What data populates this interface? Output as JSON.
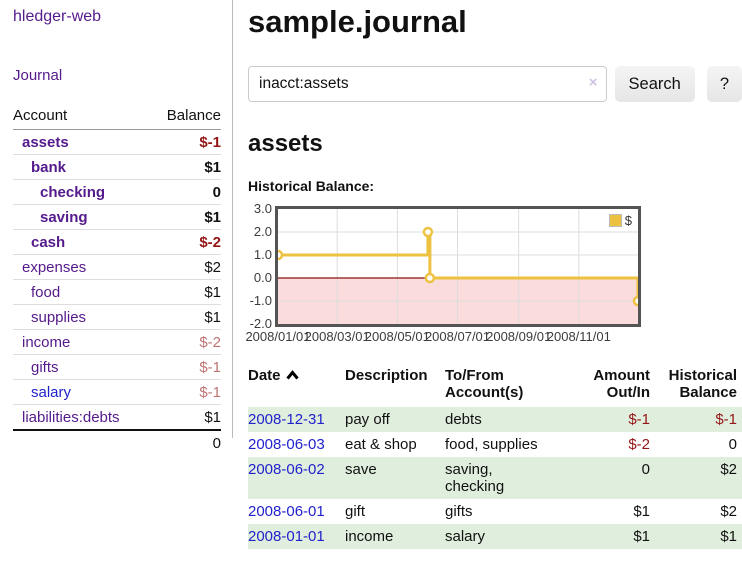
{
  "app_title": "hledger-web",
  "colors": {
    "link_purple": "#551a8b",
    "link_blue": "#2222cc",
    "negative": "#941616",
    "negative_light": "#c07575",
    "row_green": "#e0eedd",
    "chart_line": "#edc240",
    "chart_negative_region": "#fbdcdc",
    "chart_zero_line": "#8b1111",
    "chart_grid": "#dcdcdc",
    "chart_border": "#545454"
  },
  "sidebar": {
    "journal_link": "Journal",
    "accounts_table": {
      "headers": {
        "account": "Account",
        "balance": "Balance"
      },
      "rows": [
        {
          "name": "assets",
          "indent": 1,
          "bold": true,
          "balance": "$-1",
          "balance_tone": "negative"
        },
        {
          "name": "bank",
          "indent": 2,
          "bold": true,
          "balance": "$1",
          "balance_tone": "normal"
        },
        {
          "name": "checking",
          "indent": 3,
          "bold": true,
          "balance": "0",
          "balance_tone": "normal"
        },
        {
          "name": "saving",
          "indent": 3,
          "bold": true,
          "balance": "$1",
          "balance_tone": "normal"
        },
        {
          "name": "cash",
          "indent": 2,
          "bold": true,
          "balance": "$-2",
          "balance_tone": "negative"
        },
        {
          "name": "expenses",
          "indent": 1,
          "bold": false,
          "balance": "$2",
          "balance_tone": "normal"
        },
        {
          "name": "food",
          "indent": 2,
          "bold": false,
          "balance": "$1",
          "balance_tone": "normal"
        },
        {
          "name": "supplies",
          "indent": 2,
          "bold": false,
          "balance": "$1",
          "balance_tone": "normal"
        },
        {
          "name": "income",
          "indent": 1,
          "bold": false,
          "balance": "$-2",
          "balance_tone": "negative-light"
        },
        {
          "name": "gifts",
          "indent": 2,
          "bold": false,
          "balance": "$-1",
          "balance_tone": "negative-light"
        },
        {
          "name": "salary",
          "indent": 2,
          "bold": false,
          "balance": "$-1",
          "balance_tone": "negative-light",
          "link_blue": true
        },
        {
          "name": "liabilities:debts",
          "indent": 1,
          "bold": false,
          "balance": "$1",
          "balance_tone": "normal"
        }
      ],
      "total": "0"
    }
  },
  "header": {
    "title": "sample.journal"
  },
  "search": {
    "value": "inacct:assets",
    "clear_icon": "×",
    "button_label": "Search",
    "help_label": "?"
  },
  "main": {
    "account_heading": "assets",
    "chart_label": "Historical Balance:"
  },
  "chart_data": {
    "type": "line",
    "title": "Historical Balance",
    "step": true,
    "series": [
      {
        "name": "$",
        "points": [
          [
            "2008-01-01",
            1
          ],
          [
            "2008-06-01",
            2
          ],
          [
            "2008-06-03",
            0
          ],
          [
            "2008-12-31",
            -1
          ]
        ]
      }
    ],
    "xlim": [
      "2008-01-01",
      "2008-12-31"
    ],
    "ylim": [
      -2,
      3
    ],
    "x_ticks": [
      "2008/01/01",
      "2008/03/01",
      "2008/05/01",
      "2008/07/01",
      "2008/09/01",
      "2008/11/01"
    ],
    "y_ticks": [
      3.0,
      2.0,
      1.0,
      0.0,
      -1.0,
      -2.0
    ],
    "grid": true,
    "legend_position": "top-right",
    "negative_region_shaded": true
  },
  "register_table": {
    "headers": {
      "date": "Date",
      "description": "Description",
      "account": "To/From Account(s)",
      "amount": "Amount Out/In",
      "balance": "Historical Balance"
    },
    "rows": [
      {
        "date": "2008-12-31",
        "description": "pay off",
        "account": "debts",
        "amount": "$-1",
        "amount_negative": true,
        "balance": "$-1",
        "balance_negative": true
      },
      {
        "date": "2008-06-03",
        "description": "eat & shop",
        "account": "food, supplies",
        "amount": "$-2",
        "amount_negative": true,
        "balance": "0",
        "balance_negative": false
      },
      {
        "date": "2008-06-02",
        "description": "save",
        "account": "saving, checking",
        "amount": "0",
        "amount_negative": false,
        "balance": "$2",
        "balance_negative": false
      },
      {
        "date": "2008-06-01",
        "description": "gift",
        "account": "gifts",
        "amount": "$1",
        "amount_negative": false,
        "balance": "$2",
        "balance_negative": false
      },
      {
        "date": "2008-01-01",
        "description": "income",
        "account": "salary",
        "amount": "$1",
        "amount_negative": false,
        "balance": "$1",
        "balance_negative": false
      }
    ]
  }
}
